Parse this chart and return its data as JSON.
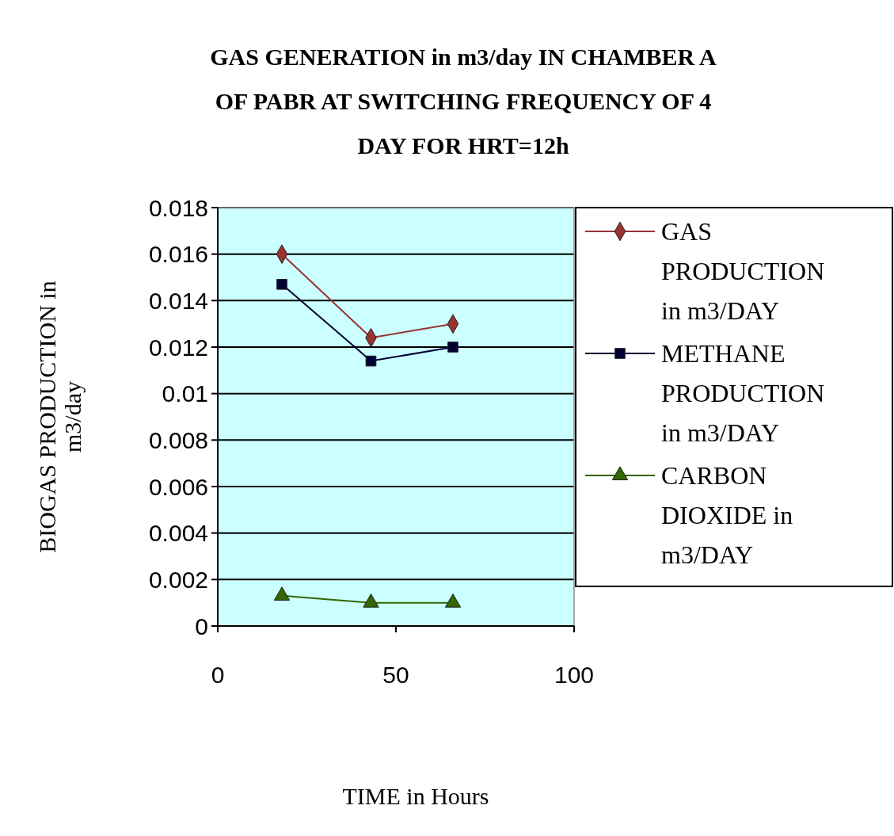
{
  "chart_data": {
    "type": "line",
    "title": "GAS GENERATION in m3/day IN CHAMBER A OF PABR AT SWITCHING FREQUENCY OF 4 DAY FOR HRT=12h",
    "xlabel": "TIME in Hours",
    "ylabel": "BIOGAS PRODUCTION in m3/day",
    "x": [
      18,
      43,
      66
    ],
    "xlim": [
      0,
      100
    ],
    "xticks": [
      0,
      50,
      100
    ],
    "ylim": [
      0,
      0.018
    ],
    "yticks": [
      0,
      0.002,
      0.004,
      0.006,
      0.008,
      0.01,
      0.012,
      0.014,
      0.016,
      0.018
    ],
    "grid": "y",
    "legend": "right",
    "series": [
      {
        "name": "GAS PRODUCTION in m3/DAY",
        "color": "#993333",
        "marker": "diamond",
        "values": [
          0.016,
          0.0124,
          0.013
        ]
      },
      {
        "name": "METHANE PRODUCTION in m3/DAY",
        "color": "#000033",
        "marker": "square",
        "values": [
          0.0147,
          0.0114,
          0.012
        ]
      },
      {
        "name": "CARBON DIOXIDE in m3/DAY",
        "color": "#336600",
        "marker": "triangle",
        "values": [
          0.0013,
          0.001,
          0.001
        ]
      }
    ]
  }
}
